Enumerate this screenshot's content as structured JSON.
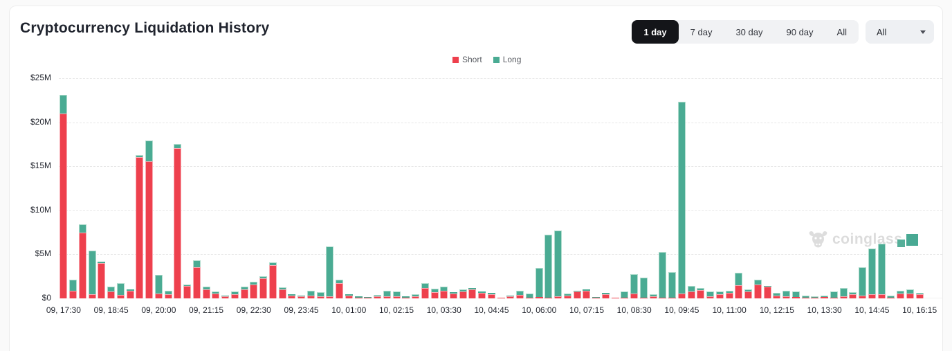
{
  "header": {
    "title": "Cryptocurrency Liquidation History",
    "ranges": [
      {
        "label": "1 day",
        "active": true
      },
      {
        "label": "7 day",
        "active": false
      },
      {
        "label": "30 day",
        "active": false
      },
      {
        "label": "90 day",
        "active": false
      },
      {
        "label": "All",
        "active": false
      }
    ],
    "dropdown": {
      "value": "All"
    }
  },
  "watermark": {
    "text": "coinglass"
  },
  "chart_data": {
    "type": "bar",
    "stacked": true,
    "title": "Cryptocurrency Liquidation History",
    "unit": "USD (millions)",
    "ylim": [
      0,
      25
    ],
    "yticks": [
      0,
      5,
      10,
      15,
      20,
      25
    ],
    "ytick_labels": [
      "$0",
      "$5M",
      "$10M",
      "$15M",
      "$20M",
      "$25M"
    ],
    "grid": "dashed-horizontal",
    "legend_position": "top-center",
    "x_tick_every": 5,
    "x_tick_labels": [
      "09, 17:30",
      "09, 18:45",
      "09, 20:00",
      "09, 21:15",
      "09, 22:30",
      "09, 23:45",
      "10, 01:00",
      "10, 02:15",
      "10, 03:30",
      "10, 04:45",
      "10, 06:00",
      "10, 07:15",
      "10, 08:30",
      "10, 09:45",
      "10, 11:00",
      "10, 12:15",
      "10, 13:30",
      "10, 14:45",
      "10, 16:15"
    ],
    "series": [
      {
        "name": "Short",
        "color": "#ee404d",
        "values": [
          21,
          0.9,
          7.5,
          0.45,
          4,
          0.75,
          0.4,
          0.85,
          16,
          15.6,
          0.55,
          0.5,
          17.1,
          1.4,
          3.5,
          1.05,
          0.55,
          0.2,
          0.45,
          1.05,
          1.6,
          2.3,
          3.8,
          1,
          0.35,
          0.25,
          0.3,
          0.2,
          0.25,
          1.75,
          0.35,
          0.1,
          0.1,
          0.2,
          0.25,
          0.2,
          0.1,
          0.2,
          1.2,
          0.7,
          0.85,
          0.55,
          0.75,
          1.05,
          0.6,
          0.45,
          0.05,
          0.2,
          0.4,
          0.1,
          0.15,
          0.1,
          0.2,
          0.3,
          0.75,
          0.85,
          0.1,
          0.5,
          0.05,
          0.1,
          0.55,
          0.1,
          0.25,
          0.1,
          0.1,
          0.55,
          0.75,
          0.95,
          0.2,
          0.45,
          0.6,
          1.5,
          0.75,
          1.6,
          1.3,
          0.35,
          0.2,
          0.15,
          0.1,
          0.05,
          0.15,
          0.1,
          0.25,
          0.5,
          0.3,
          0.45,
          0.5,
          0.1,
          0.55,
          0.55,
          0.45
        ]
      },
      {
        "name": "Long",
        "color": "#4aab93",
        "values": [
          2.1,
          1.25,
          0.9,
          4.95,
          0.15,
          0.6,
          1.35,
          0.15,
          0.25,
          2.3,
          2.15,
          0.4,
          0.45,
          0.2,
          0.85,
          0.25,
          0.25,
          0.1,
          0.3,
          0.25,
          0.25,
          0.25,
          0.3,
          0.25,
          0.1,
          0.1,
          0.6,
          0.5,
          5.65,
          0.35,
          0.1,
          0.1,
          0.05,
          0.2,
          0.65,
          0.55,
          0.15,
          0.3,
          0.5,
          0.4,
          0.5,
          0.15,
          0.25,
          0.15,
          0.15,
          0.15,
          0.05,
          0.15,
          0.5,
          0.45,
          3.3,
          7.1,
          7.5,
          0.25,
          0.1,
          0.15,
          0.05,
          0.1,
          0.05,
          0.65,
          2.2,
          2.25,
          0.25,
          5.2,
          2.9,
          21.75,
          0.7,
          0.2,
          0.6,
          0.3,
          0.25,
          1.4,
          0.3,
          0.55,
          0.15,
          0.25,
          0.7,
          0.6,
          0.2,
          0.2,
          0.2,
          0.7,
          0.95,
          0.2,
          3.25,
          5.2,
          5.75,
          0.25,
          0.35,
          0.5,
          0.2
        ]
      }
    ]
  }
}
